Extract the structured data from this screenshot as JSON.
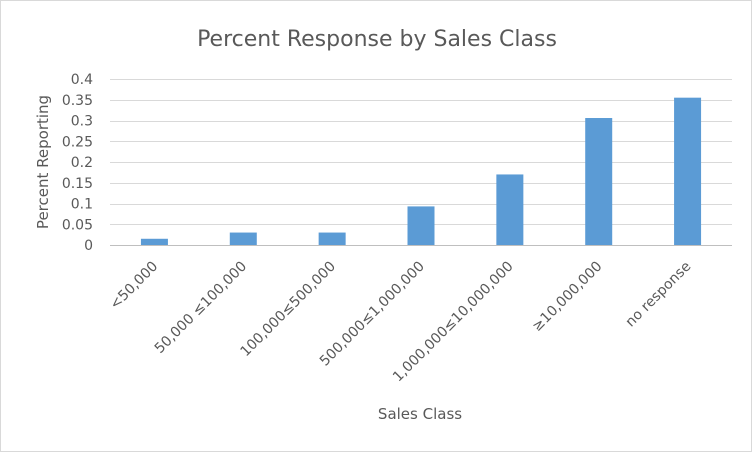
{
  "chart_data": {
    "type": "bar",
    "title": "Percent Response  by Sales Class",
    "xlabel": "Sales Class",
    "ylabel": "Percent Reporting",
    "categories": [
      "<50,000",
      "50,000 ≤100,000",
      "100,000≤500,000",
      "500,000≤1,000,000",
      "1,000,000≤10,000,000",
      "≥10,000,000",
      "no response"
    ],
    "values": [
      0.015,
      0.03,
      0.03,
      0.093,
      0.17,
      0.306,
      0.355
    ],
    "ylim": [
      0,
      0.4
    ],
    "yticks": [
      0,
      0.05,
      0.1,
      0.15,
      0.2,
      0.25,
      0.3,
      0.35,
      0.4
    ],
    "ytick_labels": [
      "0",
      "0.05",
      "0.1",
      "0.15",
      "0.2",
      "0.25",
      "0.3",
      "0.35",
      "0.4"
    ],
    "bar_color": "#5b9bd5",
    "grid": true,
    "legend": "none"
  }
}
